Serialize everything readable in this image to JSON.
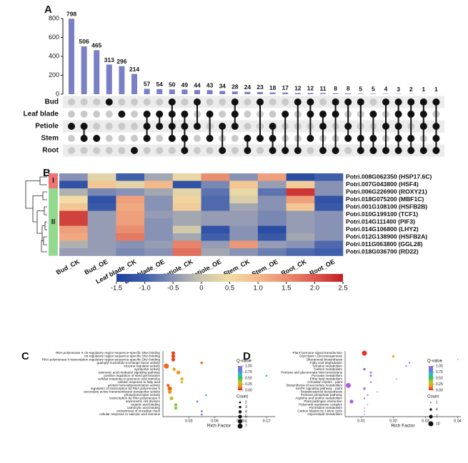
{
  "panel_labels": [
    "A",
    "B",
    "C",
    "D"
  ],
  "chart_data": [
    {
      "type": "upset",
      "color": "#7b80c6",
      "dot_color": "#111111",
      "empty_dot_color": "#c9c9c9",
      "ylim": [
        0,
        800
      ],
      "yticks": [
        0,
        200,
        400,
        600,
        800
      ],
      "sets": [
        "Bud",
        "Leaf blade",
        "Petiole",
        "Stem",
        "Root"
      ],
      "values": [
        798,
        506,
        465,
        313,
        296,
        214,
        57,
        54,
        50,
        49,
        44,
        43,
        34,
        28,
        24,
        23,
        18,
        17,
        12,
        12,
        11,
        8,
        8,
        5,
        5,
        4,
        3,
        2,
        1,
        1
      ],
      "members": [
        [
          2
        ],
        [
          2,
          3
        ],
        [
          3
        ],
        [
          0
        ],
        [
          1
        ],
        [
          4
        ],
        [
          1,
          2,
          3
        ],
        [
          1,
          2
        ],
        [
          0,
          1,
          2,
          3
        ],
        [
          1,
          2,
          3,
          4
        ],
        [
          0,
          2
        ],
        [
          1,
          3
        ],
        [
          2,
          4
        ],
        [
          0,
          1,
          2
        ],
        [
          3,
          4
        ],
        [
          0,
          3
        ],
        [
          2,
          3,
          4
        ],
        [
          1,
          4
        ],
        [
          0,
          4
        ],
        [
          0,
          1,
          3
        ],
        [
          1,
          2,
          4
        ],
        [
          0,
          1,
          4
        ],
        [
          0,
          2,
          3
        ],
        [
          0,
          3,
          4
        ],
        [
          1,
          3,
          4
        ],
        [
          0,
          2,
          4
        ],
        [
          0,
          1,
          2,
          3,
          4
        ],
        [
          0,
          1,
          3,
          4
        ],
        [
          0,
          1,
          2,
          4
        ],
        [
          0,
          2,
          3,
          4
        ]
      ]
    },
    {
      "type": "heatmap",
      "columns": [
        "Bud_CK",
        "Bud_OE",
        "Leaf blade_CK",
        "Leaf blade_OE",
        "Petiole_CK",
        "Petiole_OE",
        "Stem_CK",
        "Stem_OE",
        "Root_CK",
        "Root_OE"
      ],
      "rows": [
        "Potri.008G062350 (HSP17.6C)",
        "Potri.007G043800 (HSF4)",
        "Potri.006G226900 (ROXY21)",
        "Potri.018G075200 (MBF1C)",
        "Potri.001G108100 (HSFB2B)",
        "Potri.010G199100 (TCF1)",
        "Potri.014G111400 (PIF3)",
        "Potri.014G106800 (LHY2)",
        "Potri.012G138900 (HSFB2A)",
        "Potri.011G063800 (GGL28)",
        "Potri.018G036700 (RD22)"
      ],
      "clusters": [
        {
          "name": "I",
          "color": "#f07272",
          "rows": [
            0,
            1
          ]
        },
        {
          "name": "II",
          "color": "#93d98f",
          "rows": [
            2,
            3,
            4,
            5,
            6,
            7,
            8,
            9,
            10
          ]
        }
      ],
      "values": [
        [
          -0.5,
          0.3,
          -1.0,
          -0.3,
          0.4,
          1.5,
          -0.5,
          1.3,
          -1.3,
          -1.0
        ],
        [
          -1.2,
          0.8,
          0.3,
          1.0,
          -1.2,
          -0.6,
          0.8,
          -0.4,
          0.7,
          -0.5
        ],
        [
          -0.2,
          -0.6,
          -0.5,
          -0.3,
          0.3,
          -0.8,
          0.4,
          -0.8,
          2.3,
          -0.5
        ],
        [
          0.5,
          -1.2,
          1.3,
          -0.5,
          0.6,
          -0.9,
          0.2,
          -0.5,
          1.3,
          -1.2
        ],
        [
          0.8,
          -1.1,
          1.2,
          -0.5,
          0.7,
          -0.9,
          -0.3,
          -0.5,
          0.8,
          -1.1
        ],
        [
          2.2,
          -0.4,
          1.3,
          -0.4,
          -0.3,
          -0.4,
          -0.4,
          -0.6,
          -0.4,
          -0.5
        ],
        [
          2.2,
          -0.4,
          1.3,
          -0.5,
          -0.3,
          -0.4,
          -0.4,
          -0.6,
          -0.4,
          -0.5
        ],
        [
          1.3,
          -0.4,
          1.5,
          -0.5,
          0.1,
          -1.2,
          -0.5,
          -1.3,
          -0.4,
          -0.5
        ],
        [
          1.2,
          -0.4,
          1.7,
          -0.5,
          -0.3,
          -1.0,
          -0.5,
          -1.1,
          -0.3,
          -0.5
        ],
        [
          -0.2,
          -0.4,
          -0.5,
          -0.4,
          1.6,
          -0.4,
          1.4,
          -0.4,
          -0.5,
          -0.9
        ],
        [
          -0.4,
          -0.4,
          -0.6,
          -0.5,
          1.8,
          -0.3,
          -0.5,
          -0.7,
          -0.9,
          -1.0
        ]
      ],
      "clim": [
        -1.5,
        2.5
      ],
      "colormap": [
        "#1d3f9e",
        "#3f5fab",
        "#8892b4",
        "#c9c6ad",
        "#f2dba4",
        "#f3b98a",
        "#ea8e72",
        "#db5a4e",
        "#c41e24"
      ],
      "cticks": [
        -1.5,
        {
          "value": -1,
          "label": "-1.0"
        },
        -0.5,
        0,
        0.5,
        {
          "value": 1,
          "label": "1.0"
        },
        1.5,
        {
          "value": 2,
          "label": "2.0"
        },
        2.5
      ]
    },
    {
      "type": "dot",
      "x_label": "Rich Factor",
      "categories": [
        "RNA polymerase II cis-regulatory region sequence-specific DNA binding",
        "cis-regulatory region sequence-specific DNA binding",
        "RNA polymerase II transcription regulatory region sequence-specific DNA binding",
        "guanylyl nucleotide exchange factor activity",
        "enzyme regulator activity",
        "symporter activity",
        "jasmonic acid mediated signaling pathway",
        "positive regulation of seed germination",
        "cellular response to jasmonic acid stimulus",
        "cellular response to fatty acid",
        "protein homooligomerization activity",
        "regulation of transcription by RNA polymerase II",
        "secondary active transmembrane transporter activity",
        "phosphoreceptor activity",
        "transcription by RNA polymerase II",
        "asymmetric cell division",
        "organic acid binding",
        "carboxylic acid binding",
        "entrainment of circadian clock",
        "cellular response to salicylic acid stimulus"
      ],
      "values": [
        0.012,
        0.012,
        0.012,
        0.045,
        0.004,
        0.013,
        0.018,
        0.12,
        0.022,
        0.022,
        0.006,
        0.008,
        0.008,
        0.05,
        0.01,
        0.04,
        0.015,
        0.015,
        0.045,
        0.045
      ],
      "counts": [
        5,
        5,
        5,
        3,
        7,
        4,
        5,
        2,
        4,
        3,
        4,
        6,
        5,
        2,
        5,
        2,
        4,
        4,
        2,
        2
      ],
      "qvalues": [
        0.05,
        0.05,
        0.05,
        0.1,
        0.1,
        0.2,
        0.15,
        0.6,
        0.25,
        0.3,
        0.1,
        0.1,
        0.15,
        0.7,
        0.3,
        0.8,
        0.4,
        0.4,
        0.9,
        0.9
      ],
      "xlim": [
        0,
        0.13
      ],
      "xticks": [
        0.03,
        0.06,
        0.09,
        0.12
      ],
      "q_title": "Q-value",
      "qticks": [
        {
          "value": 0,
          "label": "0.00"
        },
        {
          "value": 0.25,
          "label": "0.25"
        },
        {
          "value": 0.5,
          "label": "0.50"
        },
        {
          "value": 0.75,
          "label": "0.75"
        },
        {
          "value": 1,
          "label": "1.00"
        }
      ],
      "colormap": [
        "#e8201e",
        "#f39a1c",
        "#b8c830",
        "#3fbf55",
        "#35b8c8",
        "#5a7fe0",
        "#b45ae0"
      ],
      "count_title": "Count",
      "count_ticks": [
        2,
        3,
        4,
        5,
        6,
        7
      ]
    },
    {
      "type": "dot",
      "x_label": "Rich Factor",
      "categories": [
        "Plant hormone signal transduction",
        "Glycolysis / Gluconeogenesis",
        "Diterpenoid biosynthesis",
        "Fatty acid degradation",
        "Tyrosine metabolism",
        "Carbon metabolism",
        "Pentose and glucuronate interconversions",
        "Pyruvate metabolism",
        "Ether lipid metabolism",
        "Circadian rhythm - plant",
        "Biosynthesis of secondary metabolites",
        "MAPK signaling pathway - plant",
        "Brassinosteroid biosynthesis",
        "Pentose phosphate pathway",
        "Arginine and proline metabolism",
        "Plant-pathogen interaction",
        "Polycomb repressive complex",
        "Pyrimidine metabolism",
        "Carbon fixation by Calvin cycle",
        "Glycerolipid metabolism"
      ],
      "values": [
        0.011,
        0.02,
        0.04,
        0.025,
        0.024,
        0.011,
        0.013,
        0.013,
        0.021,
        0.013,
        0.006,
        0.011,
        0.015,
        0.012,
        0.011,
        0.007,
        0.012,
        0.011,
        0.011,
        0.011
      ],
      "counts": [
        10,
        4,
        1,
        2,
        2,
        4,
        3,
        3,
        1,
        2,
        10,
        4,
        1,
        2,
        2,
        7,
        1,
        1,
        1,
        1
      ],
      "qvalues": [
        0.02,
        0.2,
        0.4,
        0.9,
        0.9,
        0.95,
        0.95,
        0.95,
        0.95,
        0.95,
        1,
        0.95,
        0.95,
        1,
        1,
        1,
        1,
        1,
        1,
        1
      ],
      "xlim": [
        0.005,
        0.041
      ],
      "xticks": [
        0.01,
        0.02,
        0.03,
        0.04
      ],
      "q_title": "Q-value",
      "qticks": [
        {
          "value": 0,
          "label": "0.00"
        },
        {
          "value": 0.25,
          "label": "0.25"
        },
        {
          "value": 0.5,
          "label": "0.50"
        },
        {
          "value": 0.75,
          "label": "0.75"
        },
        {
          "value": 1,
          "label": "1.00"
        }
      ],
      "colormap": [
        "#e8201e",
        "#f39a1c",
        "#b8c830",
        "#3fbf55",
        "#35b8c8",
        "#5a7fe0",
        "#b45ae0"
      ],
      "count_title": "Count",
      "count_ticks": [
        1,
        4,
        7,
        10
      ]
    }
  ]
}
